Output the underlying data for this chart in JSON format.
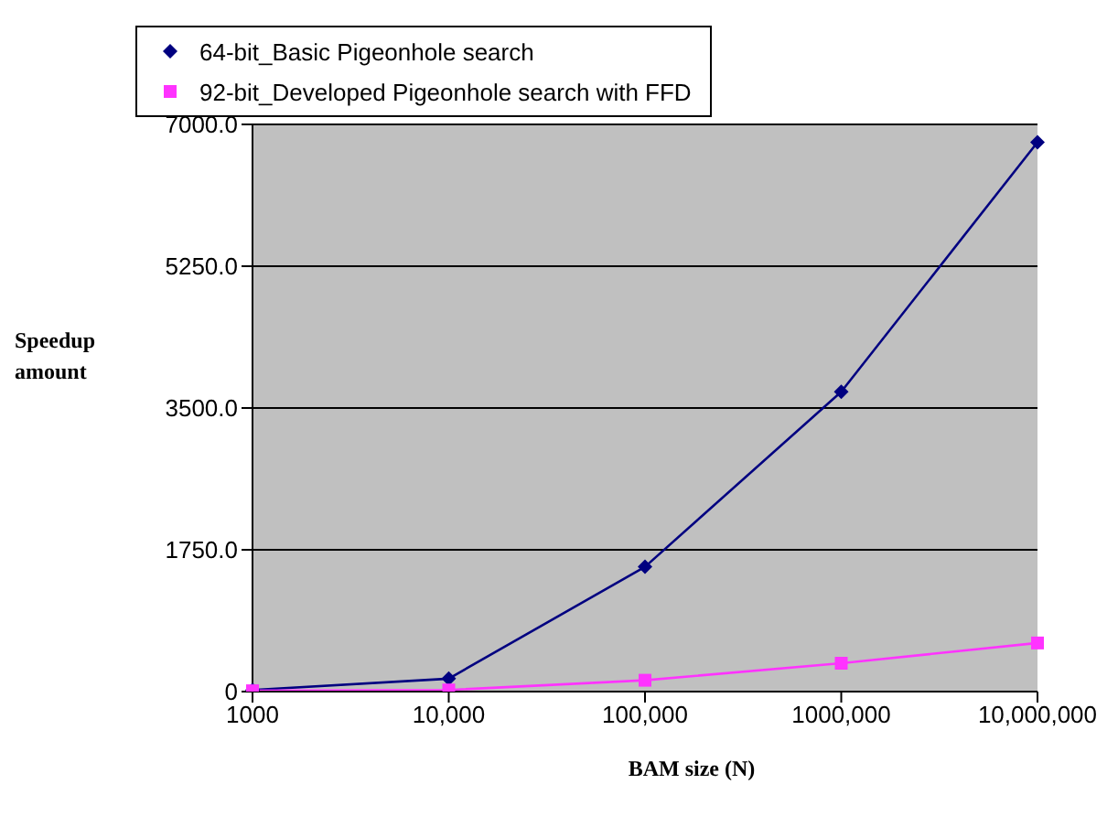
{
  "chart_data": {
    "type": "line",
    "xlabel": "BAM size (N)",
    "ylabel": "Speedup amount",
    "categories": [
      "1000",
      "10,000",
      "100,000",
      "1000,000",
      "10,000,000"
    ],
    "series": [
      {
        "name": "64-bit_Basic Pigeonhole search",
        "color": "#000080",
        "marker": "diamond",
        "values": [
          20,
          160,
          1540,
          3700,
          6780
        ]
      },
      {
        "name": "92-bit_Developed Pigeonhole search with FFD",
        "color": "#ff33ff",
        "marker": "square",
        "values": [
          10,
          20,
          140,
          350,
          600
        ]
      }
    ],
    "ylim": [
      0,
      7000
    ],
    "yticks": [
      {
        "value": 0,
        "label": "0"
      },
      {
        "value": 1750,
        "label": "1750.0"
      },
      {
        "value": 3500,
        "label": "3500.0"
      },
      {
        "value": 5250,
        "label": "5250.0"
      },
      {
        "value": 7000,
        "label": "7000.0"
      }
    ],
    "grid": "y",
    "legend": "top left"
  }
}
